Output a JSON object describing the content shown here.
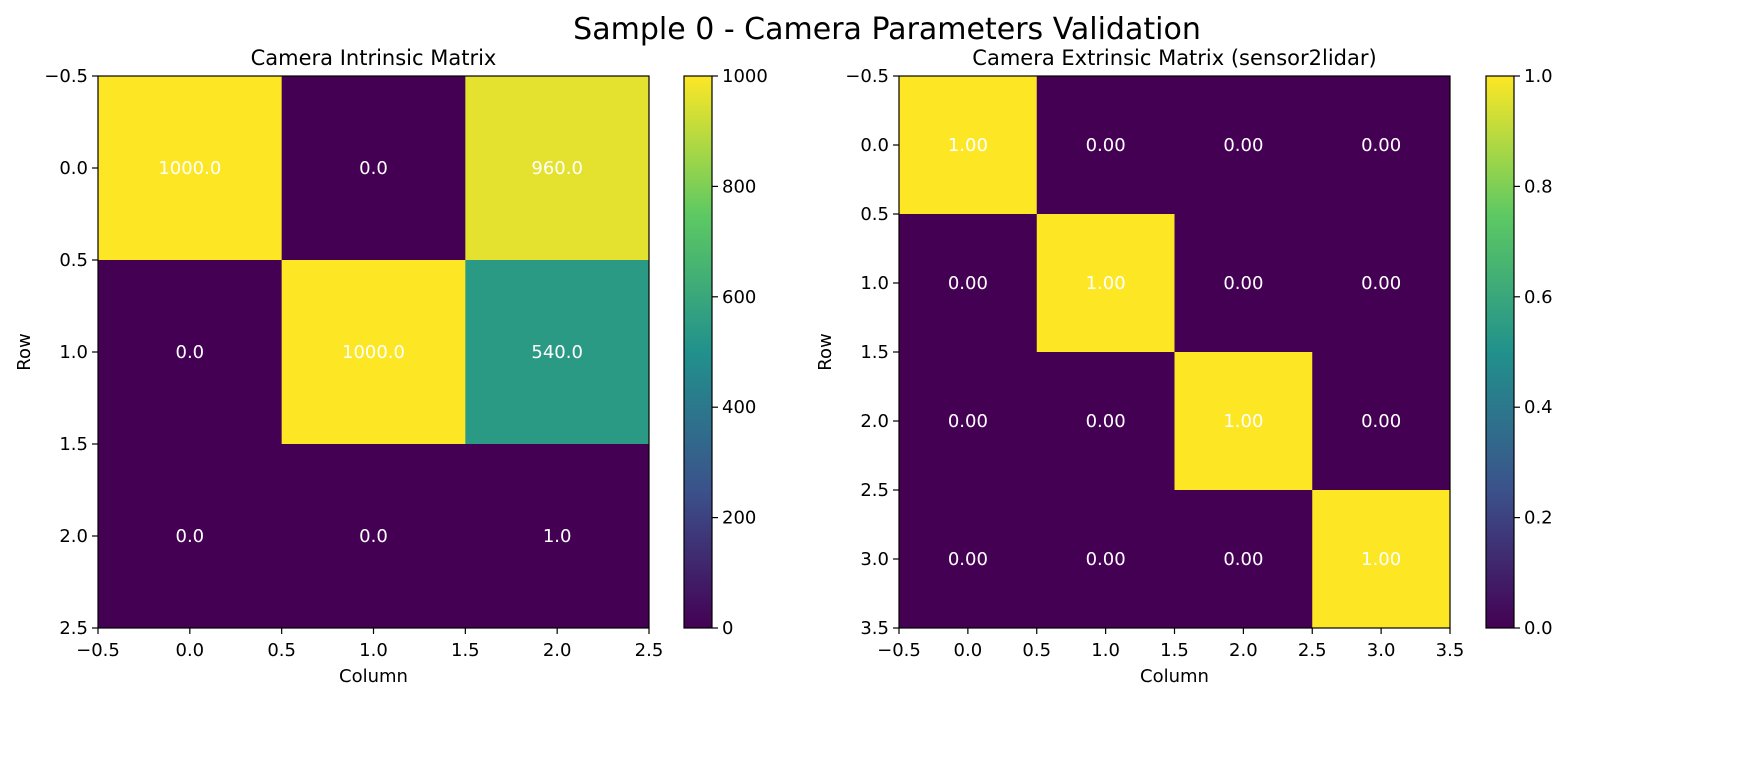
{
  "figure": {
    "suptitle": "Sample 0 - Camera Parameters Validation"
  },
  "colormap": {
    "name": "viridis",
    "stops": [
      "#440154",
      "#3b528b",
      "#21918c",
      "#5ec962",
      "#fde725"
    ]
  },
  "chart_data": [
    {
      "type": "heatmap",
      "title": "Camera Intrinsic Matrix",
      "xlabel": "Column",
      "ylabel": "Row",
      "matrix": [
        [
          1000.0,
          0.0,
          960.0
        ],
        [
          0.0,
          1000.0,
          540.0
        ],
        [
          0.0,
          0.0,
          1.0
        ]
      ],
      "value_labels": [
        [
          "1000.0",
          "0.0",
          "960.0"
        ],
        [
          "0.0",
          "1000.0",
          "540.0"
        ],
        [
          "0.0",
          "0.0",
          "1.0"
        ]
      ],
      "xlim": [
        -0.5,
        2.5
      ],
      "ylim": [
        2.5,
        -0.5
      ],
      "xticks": [
        "-0.5",
        "0.0",
        "0.5",
        "1.0",
        "1.5",
        "2.0",
        "2.5"
      ],
      "yticks": [
        "-0.5",
        "0.0",
        "0.5",
        "1.0",
        "1.5",
        "2.0",
        "2.5"
      ],
      "colorbar": {
        "range": [
          0,
          1000
        ],
        "ticks": [
          "0",
          "200",
          "400",
          "600",
          "800",
          "1000"
        ]
      }
    },
    {
      "type": "heatmap",
      "title": "Camera Extrinsic Matrix (sensor2lidar)",
      "xlabel": "Column",
      "ylabel": "Row",
      "matrix": [
        [
          1,
          0,
          0,
          0
        ],
        [
          0,
          1,
          0,
          0
        ],
        [
          0,
          0,
          1,
          0
        ],
        [
          0,
          0,
          0,
          1
        ]
      ],
      "value_labels": [
        [
          "1.00",
          "0.00",
          "0.00",
          "0.00"
        ],
        [
          "0.00",
          "1.00",
          "0.00",
          "0.00"
        ],
        [
          "0.00",
          "0.00",
          "1.00",
          "0.00"
        ],
        [
          "0.00",
          "0.00",
          "0.00",
          "1.00"
        ]
      ],
      "xlim": [
        -0.5,
        3.5
      ],
      "ylim": [
        3.5,
        -0.5
      ],
      "xticks": [
        "-0.5",
        "0.0",
        "0.5",
        "1.0",
        "1.5",
        "2.0",
        "2.5",
        "3.0",
        "3.5"
      ],
      "yticks": [
        "-0.5",
        "0.0",
        "0.5",
        "1.0",
        "1.5",
        "2.0",
        "2.5",
        "3.0",
        "3.5"
      ],
      "colorbar": {
        "range": [
          0,
          1
        ],
        "ticks": [
          "0.0",
          "0.2",
          "0.4",
          "0.6",
          "0.8",
          "1.0"
        ]
      }
    }
  ]
}
